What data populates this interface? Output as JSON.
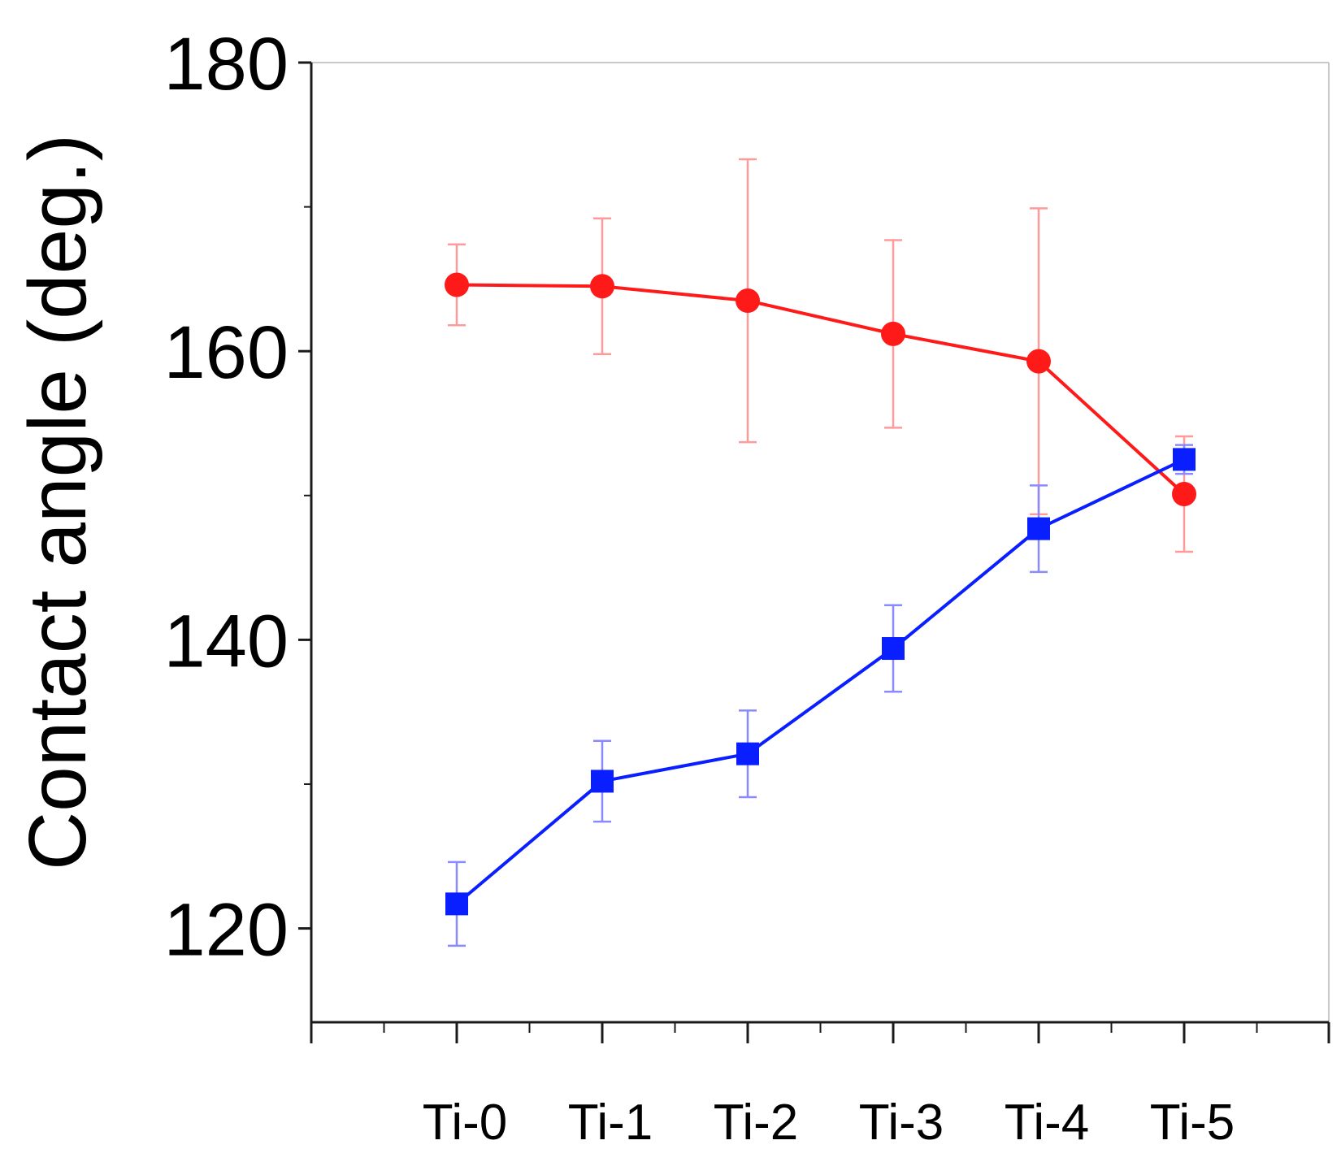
{
  "chart_data": {
    "type": "line",
    "title": "",
    "xlabel": "",
    "ylabel": "Contact angle (deg.)",
    "categories": [
      "Ti-0",
      "Ti-1",
      "Ti-2",
      "Ti-3",
      "Ti-4",
      "Ti-5"
    ],
    "ylim": [
      113.5,
      180
    ],
    "yticks": [
      120,
      140,
      160,
      180
    ],
    "series": [
      {
        "name": "red-circles",
        "color": "#ff1a1a",
        "errColor": "#ff9a9a",
        "marker": "circle",
        "values": [
          164.6,
          164.5,
          163.5,
          161.2,
          159.3,
          150.1
        ],
        "err": [
          2.8,
          4.7,
          9.8,
          6.5,
          10.6,
          4.0
        ]
      },
      {
        "name": "blue-squares",
        "color": "#0a1fff",
        "errColor": "#8a8aff",
        "marker": "square",
        "values": [
          121.7,
          130.2,
          132.1,
          139.4,
          147.7,
          152.5
        ],
        "err": [
          2.9,
          2.8,
          3.0,
          3.0,
          3.0,
          1.0
        ]
      }
    ]
  }
}
